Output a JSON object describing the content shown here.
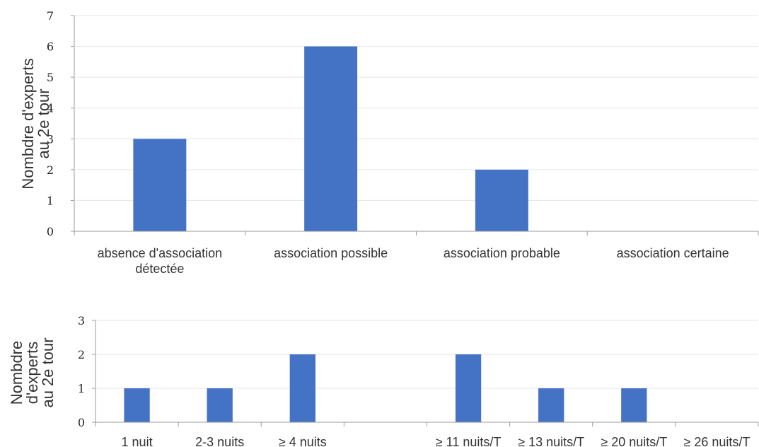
{
  "chart_data": [
    {
      "type": "bar",
      "categories": [
        [
          "absence d'association",
          "détectée"
        ],
        [
          "association possible"
        ],
        [
          "association probable"
        ],
        [
          "association certaine"
        ]
      ],
      "values": [
        3,
        6,
        2,
        0
      ],
      "title": "",
      "xlabel": "",
      "ylabel": [
        "Nombdre d'experts",
        "au 2e tour"
      ],
      "ylim": [
        0,
        7
      ],
      "yticks": [
        0,
        1,
        2,
        3,
        4,
        5,
        6,
        7
      ],
      "grid": true,
      "bar_color": "#4472C4"
    },
    {
      "type": "bar",
      "categories": [
        [
          "1 nuit"
        ],
        [
          "2-3 nuits"
        ],
        [
          "≥ 4 nuits"
        ],
        [
          ""
        ],
        [
          "≥ 11 nuits/T"
        ],
        [
          "≥ 13 nuits/T"
        ],
        [
          "≥ 20 nuits/T"
        ],
        [
          "≥ 26 nuits/T"
        ]
      ],
      "values": [
        1,
        1,
        2,
        0,
        2,
        1,
        1,
        0
      ],
      "title": "",
      "xlabel": "",
      "ylabel": [
        "Nombdre",
        "d'experts",
        "au 2e tour"
      ],
      "ylim": [
        0,
        3
      ],
      "yticks": [
        0,
        1,
        2,
        3
      ],
      "grid": true,
      "bar_color": "#4472C4"
    }
  ]
}
